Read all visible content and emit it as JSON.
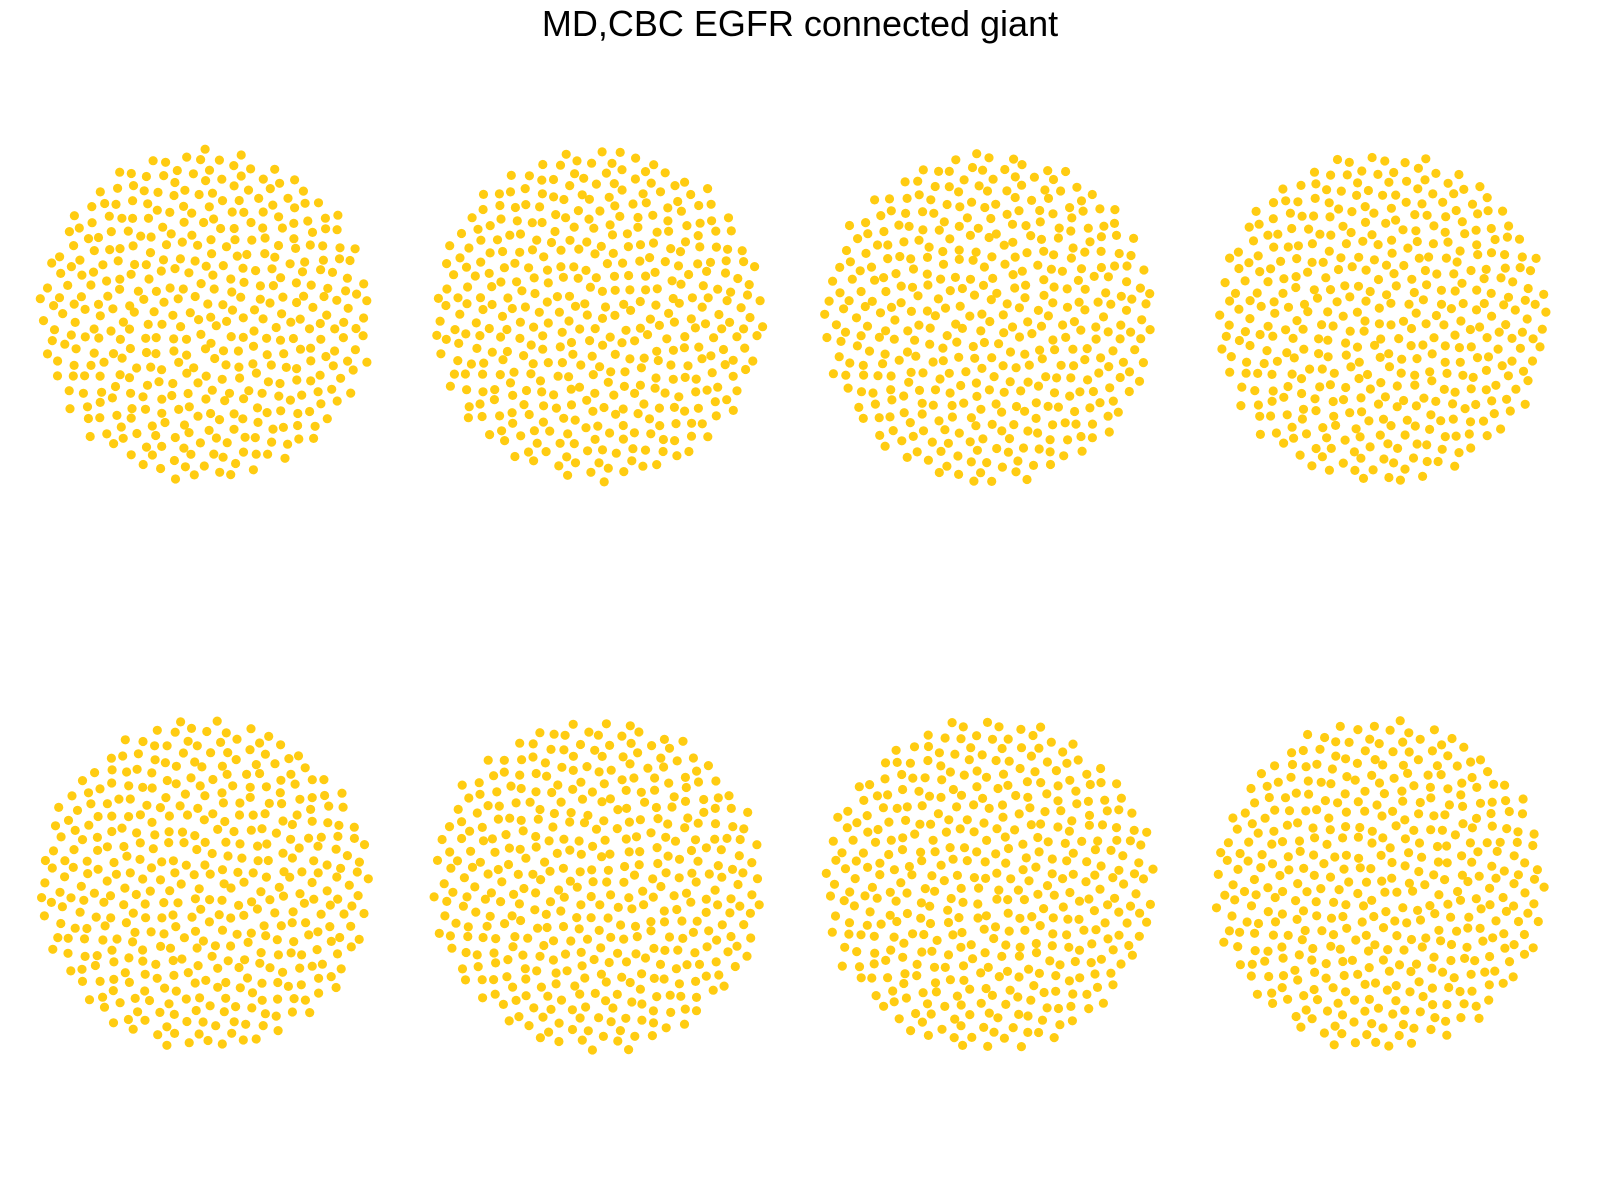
{
  "figure": {
    "title": "MD,CBC EGFR connected giant"
  },
  "style": {
    "node_color": "#FFCC11",
    "background": "#ffffff"
  },
  "panels": [
    {
      "nodes": 420
    },
    {
      "nodes": 420
    },
    {
      "nodes": 420
    },
    {
      "nodes": 420
    },
    {
      "nodes": 420
    },
    {
      "nodes": 420
    },
    {
      "nodes": 420
    },
    {
      "nodes": 420
    }
  ]
}
